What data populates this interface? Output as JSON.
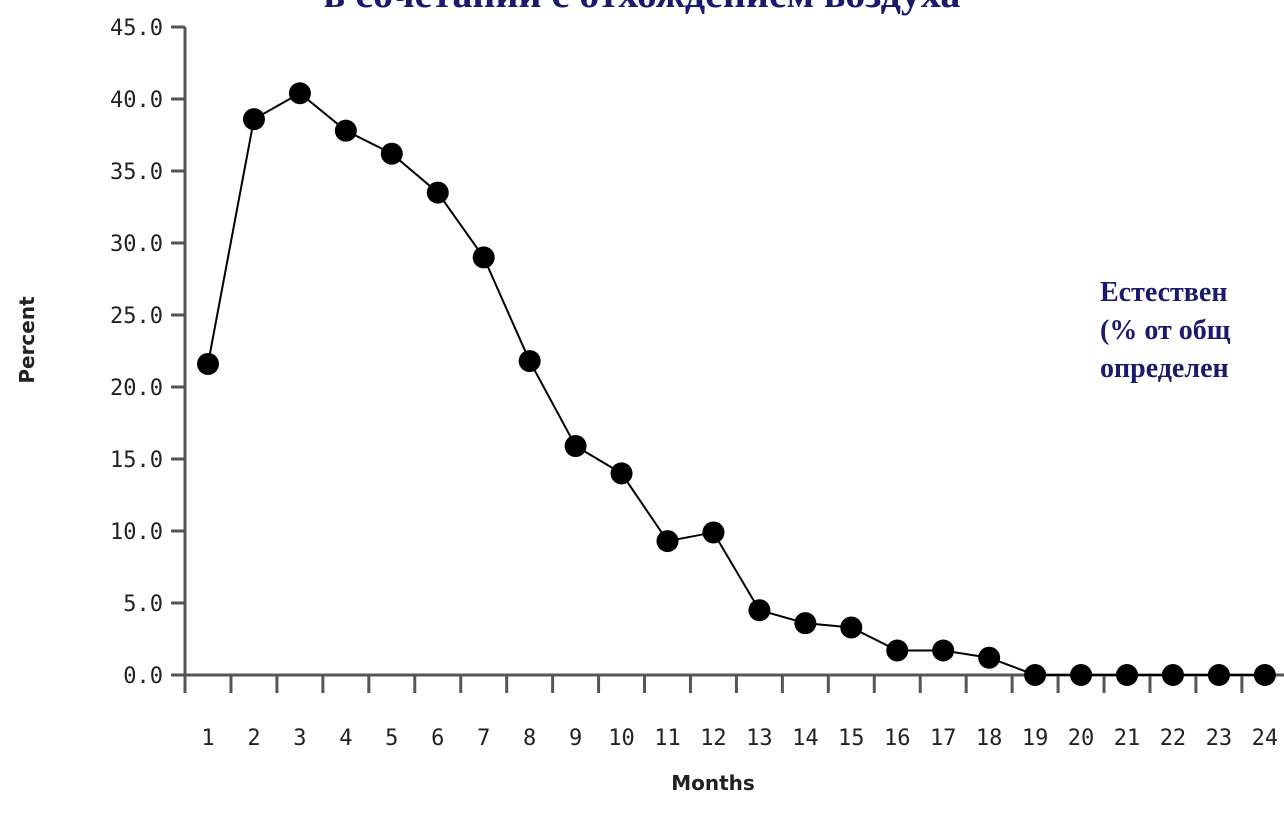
{
  "title_line": "в сочетании с отхождением воздуха",
  "annotation": {
    "lines": [
      "Естествен",
      "(% от общ",
      "определен"
    ]
  },
  "colors": {
    "title": "#1a1a6e",
    "line": "#000000",
    "axis": "#555555",
    "marker": "#000000"
  },
  "chart_data": {
    "type": "line",
    "xlabel": "Months",
    "ylabel": "Percent",
    "ylim": [
      0,
      45
    ],
    "yticks": [
      "0.0",
      "5.0",
      "10.0",
      "15.0",
      "20.0",
      "25.0",
      "30.0",
      "35.0",
      "40.0",
      "45.0"
    ],
    "categories": [
      "1",
      "2",
      "3",
      "4",
      "5",
      "6",
      "7",
      "8",
      "9",
      "10",
      "11",
      "12",
      "13",
      "14",
      "15",
      "16",
      "17",
      "18",
      "19",
      "20",
      "21",
      "22",
      "23",
      "24"
    ],
    "series": [
      {
        "values": [
          21.6,
          38.6,
          40.4,
          37.8,
          36.2,
          33.5,
          29.0,
          21.8,
          15.9,
          14.0,
          9.3,
          9.9,
          4.5,
          3.6,
          3.3,
          1.7,
          1.7,
          1.2,
          0.0,
          0.0,
          0.0,
          0.0,
          0.0,
          0.0
        ]
      }
    ],
    "grid": false,
    "legend": "none"
  }
}
